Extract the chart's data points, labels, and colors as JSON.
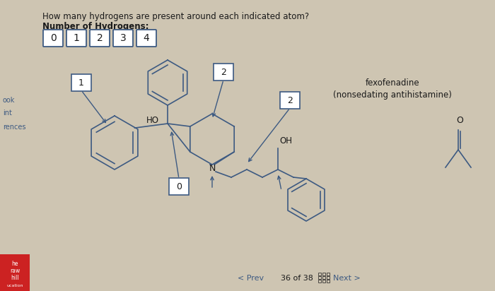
{
  "bg_color": "#cec5b2",
  "title_text": "How many hydrogens are present around each indicated atom?",
  "subtitle_text": "Number of Hydrogens:",
  "button_values": [
    "0",
    "1",
    "2",
    "3",
    "4"
  ],
  "label_color": "#3d5a82",
  "text_color": "#1a1a1a",
  "molecule_label_line1": "fexofenadine",
  "molecule_label_line2": "(nonsedating antihistamine)",
  "nav_text_left": "< Prev",
  "nav_text_center": "36 of 38",
  "nav_text_right": "Next >",
  "side_labels": [
    "ook",
    "int",
    "rences"
  ]
}
